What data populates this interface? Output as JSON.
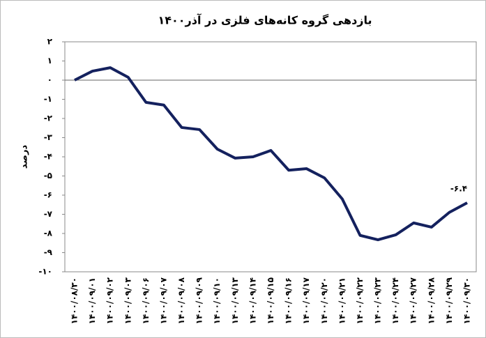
{
  "chart_data": {
    "type": "line",
    "title": "بازدهی گروه کانه‌های فلزی در آذر۱۴۰۰",
    "ylabel": "درصد",
    "categories": [
      "۱۴۰۰/۰۸/۳۰",
      "۱۴۰۰/۰۹/۰۱",
      "۱۴۰۰/۰۹/۰۲",
      "۱۴۰۰/۰۹/۰۳",
      "۱۴۰۰/۰۹/۰۶",
      "۱۴۰۰/۰۹/۰۷",
      "۱۴۰۰/۰۹/۰۸",
      "۱۴۰۰/۰۹/۰۹",
      "۱۴۰۰/۰۹/۱۰",
      "۱۴۰۰/۰۹/۱۳",
      "۱۴۰۰/۰۹/۱۴",
      "۱۴۰۰/۰۹/۱۵",
      "۱۴۰۰/۰۹/۱۶",
      "۱۴۰۰/۰۹/۱۷",
      "۱۴۰۰/۰۹/۲۰",
      "۱۴۰۰/۰۹/۲۱",
      "۱۴۰۰/۰۹/۲۲",
      "۱۴۰۰/۰۹/۲۳",
      "۱۴۰۰/۰۹/۲۴",
      "۱۴۰۰/۰۹/۲۷",
      "۱۴۰۰/۰۹/۲۸",
      "۱۴۰۰/۰۹/۲۹",
      "۱۴۰۰/۰۹/۳۰"
    ],
    "values": [
      0,
      0.47,
      0.65,
      0.15,
      -1.16,
      -1.3,
      -2.47,
      -2.58,
      -3.6,
      -4.07,
      -4.0,
      -3.67,
      -4.7,
      -4.62,
      -5.1,
      -6.2,
      -8.1,
      -8.33,
      -8.07,
      -7.45,
      -7.67,
      -6.9,
      -6.4
    ],
    "value_labels": [
      null,
      null,
      null,
      null,
      null,
      null,
      null,
      null,
      null,
      null,
      null,
      null,
      null,
      null,
      null,
      null,
      null,
      null,
      null,
      null,
      null,
      null,
      "-۶.۴"
    ],
    "color": "#14215e",
    "ylim": [
      -10,
      2
    ],
    "yticks": [
      {
        "value": 2,
        "label": "۲"
      },
      {
        "value": 1,
        "label": "۱"
      },
      {
        "value": 0,
        "label": "۰"
      },
      {
        "value": -1,
        "label": "-۱"
      },
      {
        "value": -2,
        "label": "-۲"
      },
      {
        "value": -3,
        "label": "-۳"
      },
      {
        "value": -4,
        "label": "-۴"
      },
      {
        "value": -5,
        "label": "-۵"
      },
      {
        "value": -6,
        "label": "-۶"
      },
      {
        "value": -7,
        "label": "-۷"
      },
      {
        "value": -8,
        "label": "-۸"
      },
      {
        "value": -9,
        "label": "-۹"
      },
      {
        "value": -10,
        "label": "-۱۰"
      }
    ],
    "grid": false
  }
}
